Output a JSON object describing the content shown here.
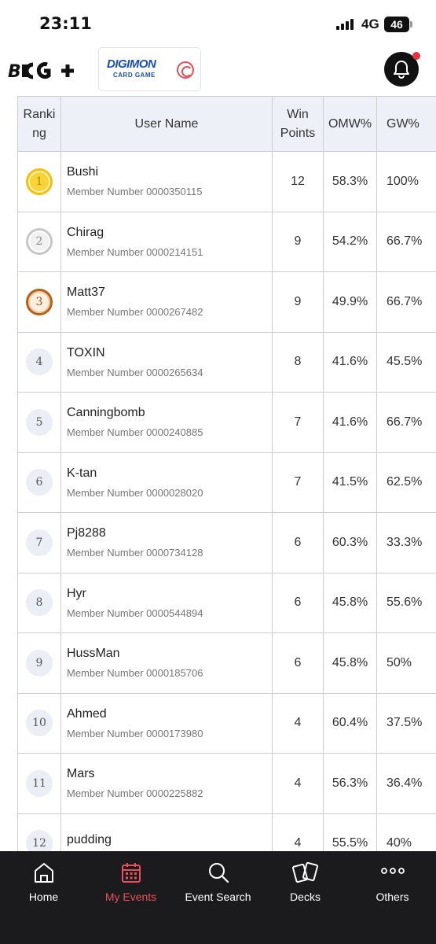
{
  "status_bar": {
    "time": "23:11",
    "network": "4G",
    "battery": "46"
  },
  "header": {
    "brand_logo": "B⁠TCG+",
    "game_logo_line1": "DIGIMON",
    "game_logo_line2": "CARD GAME",
    "notification_dot_color": "#e8333f"
  },
  "table": {
    "headers": {
      "rank": "Ranking",
      "user": "User Name",
      "win_points": "Win Points",
      "omw": "OMW%",
      "gw": "GW%"
    },
    "rows": [
      {
        "rank": "1",
        "name": "Bushi",
        "member": "Member Number 0000350115",
        "win_points": "12",
        "omw": "58.3%",
        "gw": "100%"
      },
      {
        "rank": "2",
        "name": "Chirag",
        "member": "Member Number 0000214151",
        "win_points": "9",
        "omw": "54.2%",
        "gw": "66.7%"
      },
      {
        "rank": "3",
        "name": "Matt37",
        "member": "Member Number 0000267482",
        "win_points": "9",
        "omw": "49.9%",
        "gw": "66.7%"
      },
      {
        "rank": "4",
        "name": "TOXIN",
        "member": "Member Number 0000265634",
        "win_points": "8",
        "omw": "41.6%",
        "gw": "45.5%"
      },
      {
        "rank": "5",
        "name": "Canningbomb",
        "member": "Member Number 0000240885",
        "win_points": "7",
        "omw": "41.6%",
        "gw": "66.7%"
      },
      {
        "rank": "6",
        "name": "K-tan",
        "member": "Member Number 0000028020",
        "win_points": "7",
        "omw": "41.5%",
        "gw": "62.5%"
      },
      {
        "rank": "7",
        "name": "Pj8288",
        "member": "Member Number 0000734128",
        "win_points": "6",
        "omw": "60.3%",
        "gw": "33.3%"
      },
      {
        "rank": "8",
        "name": "Hyr",
        "member": "Member Number 0000544894",
        "win_points": "6",
        "omw": "45.8%",
        "gw": "55.6%"
      },
      {
        "rank": "9",
        "name": "HussMan",
        "member": "Member Number 0000185706",
        "win_points": "6",
        "omw": "45.8%",
        "gw": "50%"
      },
      {
        "rank": "10",
        "name": "Ahmed",
        "member": "Member Number 0000173980",
        "win_points": "4",
        "omw": "60.4%",
        "gw": "37.5%"
      },
      {
        "rank": "11",
        "name": "Mars",
        "member": "Member Number 0000225882",
        "win_points": "4",
        "omw": "56.3%",
        "gw": "36.4%"
      },
      {
        "rank": "12",
        "name": "pudding",
        "member": "",
        "win_points": "4",
        "omw": "55.5%",
        "gw": "40%"
      }
    ]
  },
  "nav": {
    "items": [
      {
        "label": "Home",
        "icon": "home-icon"
      },
      {
        "label": "My Events",
        "icon": "calendar-icon"
      },
      {
        "label": "Event Search",
        "icon": "search-icon"
      },
      {
        "label": "Decks",
        "icon": "cards-icon"
      },
      {
        "label": "Others",
        "icon": "more-icon"
      }
    ],
    "active_color": "#e8505b"
  }
}
